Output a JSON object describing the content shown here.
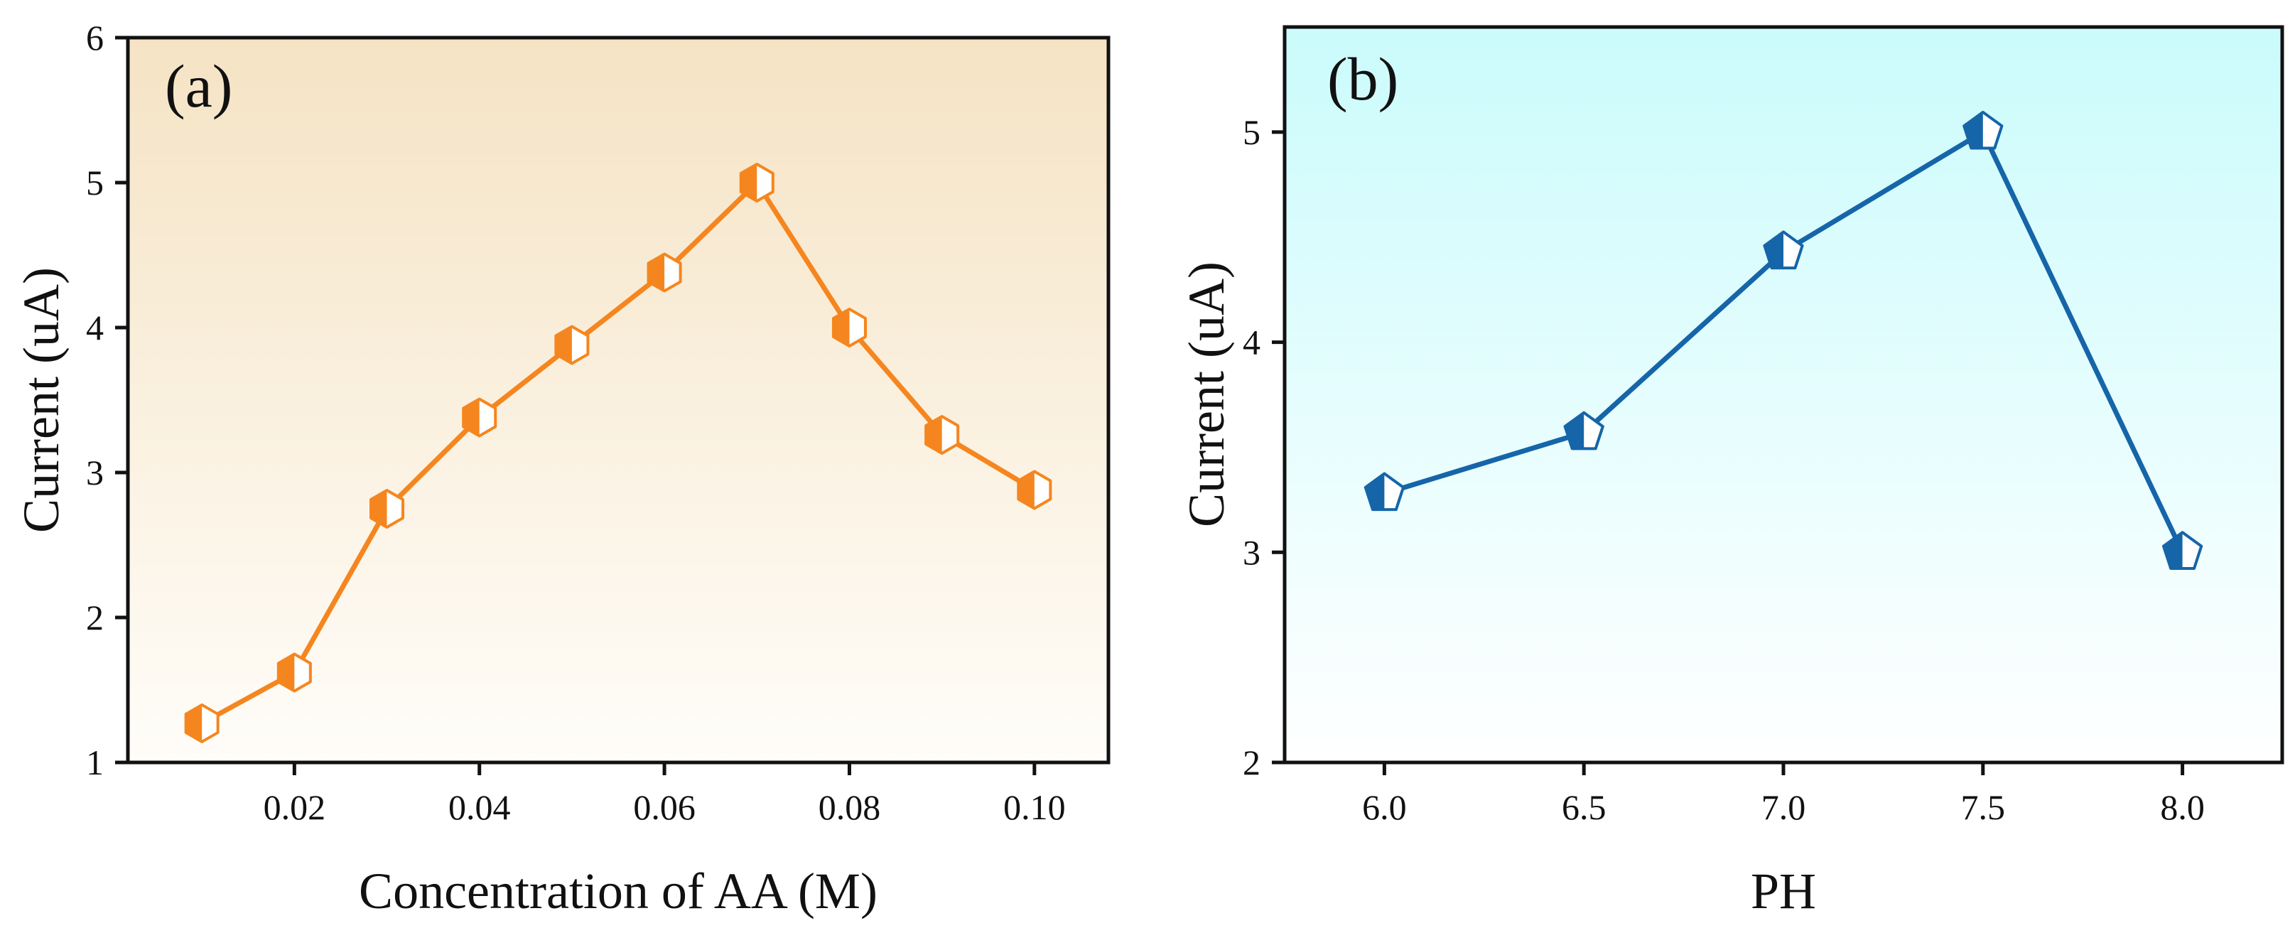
{
  "chart_data": [
    {
      "type": "line",
      "panel_label": "(a)",
      "title": "",
      "xlabel": "Concentration of AA (M)",
      "ylabel": "Current (uA)",
      "xlim": [
        0.002,
        0.108
      ],
      "ylim": [
        1,
        6
      ],
      "xticks": [
        0.02,
        0.04,
        0.06,
        0.08,
        0.1
      ],
      "xtick_labels": [
        "0.02",
        "0.04",
        "0.06",
        "0.08",
        "0.10"
      ],
      "yticks": [
        1,
        2,
        3,
        4,
        5,
        6
      ],
      "ytick_labels": [
        "1",
        "2",
        "3",
        "4",
        "5",
        "6"
      ],
      "marker": "half-filled hexagon",
      "grid": false,
      "series": [
        {
          "name": "Current",
          "x": [
            0.01,
            0.02,
            0.03,
            0.04,
            0.05,
            0.06,
            0.07,
            0.08,
            0.09,
            0.1
          ],
          "values": [
            1.27,
            1.62,
            2.75,
            3.38,
            3.88,
            4.38,
            5.0,
            4.0,
            3.26,
            2.88
          ]
        }
      ],
      "colors": {
        "line": "#f5861f",
        "background_top": "#f5e3c4",
        "background_bottom": "#fffdf9"
      }
    },
    {
      "type": "line",
      "panel_label": "(b)",
      "title": "",
      "xlabel": "PH",
      "ylabel": "Current (uA)",
      "xlim": [
        5.75,
        8.25
      ],
      "ylim": [
        2,
        5.5
      ],
      "xticks": [
        6.0,
        6.5,
        7.0,
        7.5,
        8.0
      ],
      "xtick_labels": [
        "6.0",
        "6.5",
        "7.0",
        "7.5",
        "8.0"
      ],
      "yticks": [
        2,
        3,
        4,
        5
      ],
      "ytick_labels": [
        "2",
        "3",
        "4",
        "5"
      ],
      "marker": "half-filled pentagon",
      "grid": false,
      "series": [
        {
          "name": "Current",
          "x": [
            6.0,
            6.5,
            7.0,
            7.5,
            8.0
          ],
          "values": [
            3.28,
            3.57,
            4.43,
            5.0,
            3.0
          ]
        }
      ],
      "colors": {
        "line": "#1565a8",
        "background_top": "#cbfbfc",
        "background_bottom": "#ffffff"
      }
    }
  ]
}
